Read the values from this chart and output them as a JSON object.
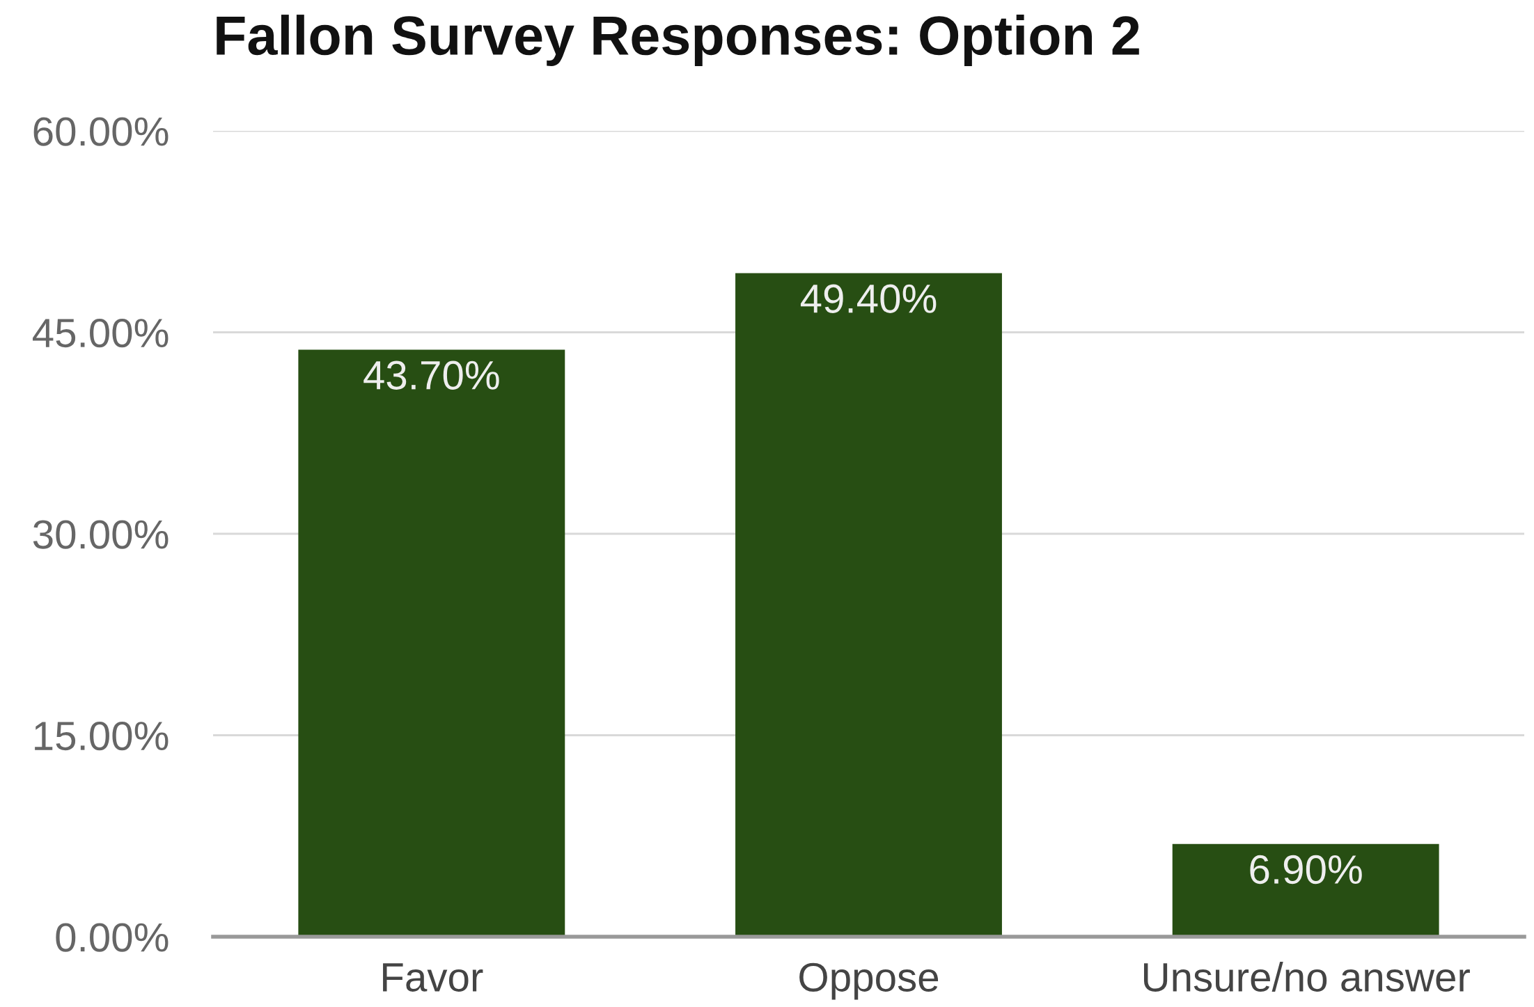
{
  "chart_data": {
    "type": "bar",
    "title": "Fallon Survey Responses: Option 2",
    "categories": [
      "Favor",
      "Oppose",
      "Unsure/no answer"
    ],
    "values": [
      43.7,
      49.4,
      6.9
    ],
    "color": "#274e13",
    "value_labels": [
      "43.70%",
      "49.40%",
      "6.90%"
    ],
    "ylim": [
      0,
      60
    ],
    "yticks": [
      {
        "value": 0,
        "label": "0.00%"
      },
      {
        "value": 15,
        "label": "15.00%"
      },
      {
        "value": 30,
        "label": "30.00%"
      },
      {
        "value": 45,
        "label": "45.00%"
      },
      {
        "value": 60,
        "label": "60.00%"
      }
    ],
    "grid": "y"
  }
}
